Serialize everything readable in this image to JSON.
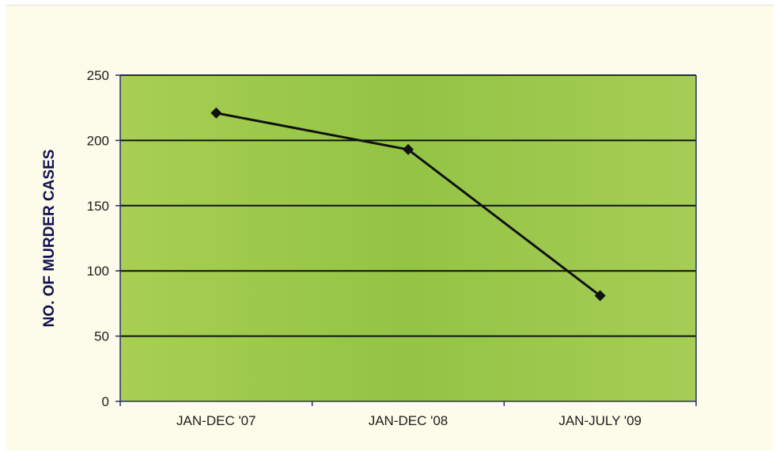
{
  "chart_data": {
    "type": "line",
    "title": "",
    "xlabel": "",
    "ylabel": "NO. OF MURDER CASES",
    "categories": [
      "JAN-DEC '07",
      "JAN-DEC '08",
      "JAN-JULY '09"
    ],
    "series": [
      {
        "values": [
          221,
          193,
          81
        ]
      }
    ],
    "ylim": [
      0,
      250
    ],
    "yticks": [
      0,
      50,
      100,
      150,
      200,
      250
    ],
    "grid": true,
    "legend": "none",
    "colors": {
      "plot_background": "#9cc94a",
      "page_background": "#fdfbe9",
      "line": "#111111",
      "gridline": "#111111",
      "frame": "#2a2f6e"
    }
  }
}
